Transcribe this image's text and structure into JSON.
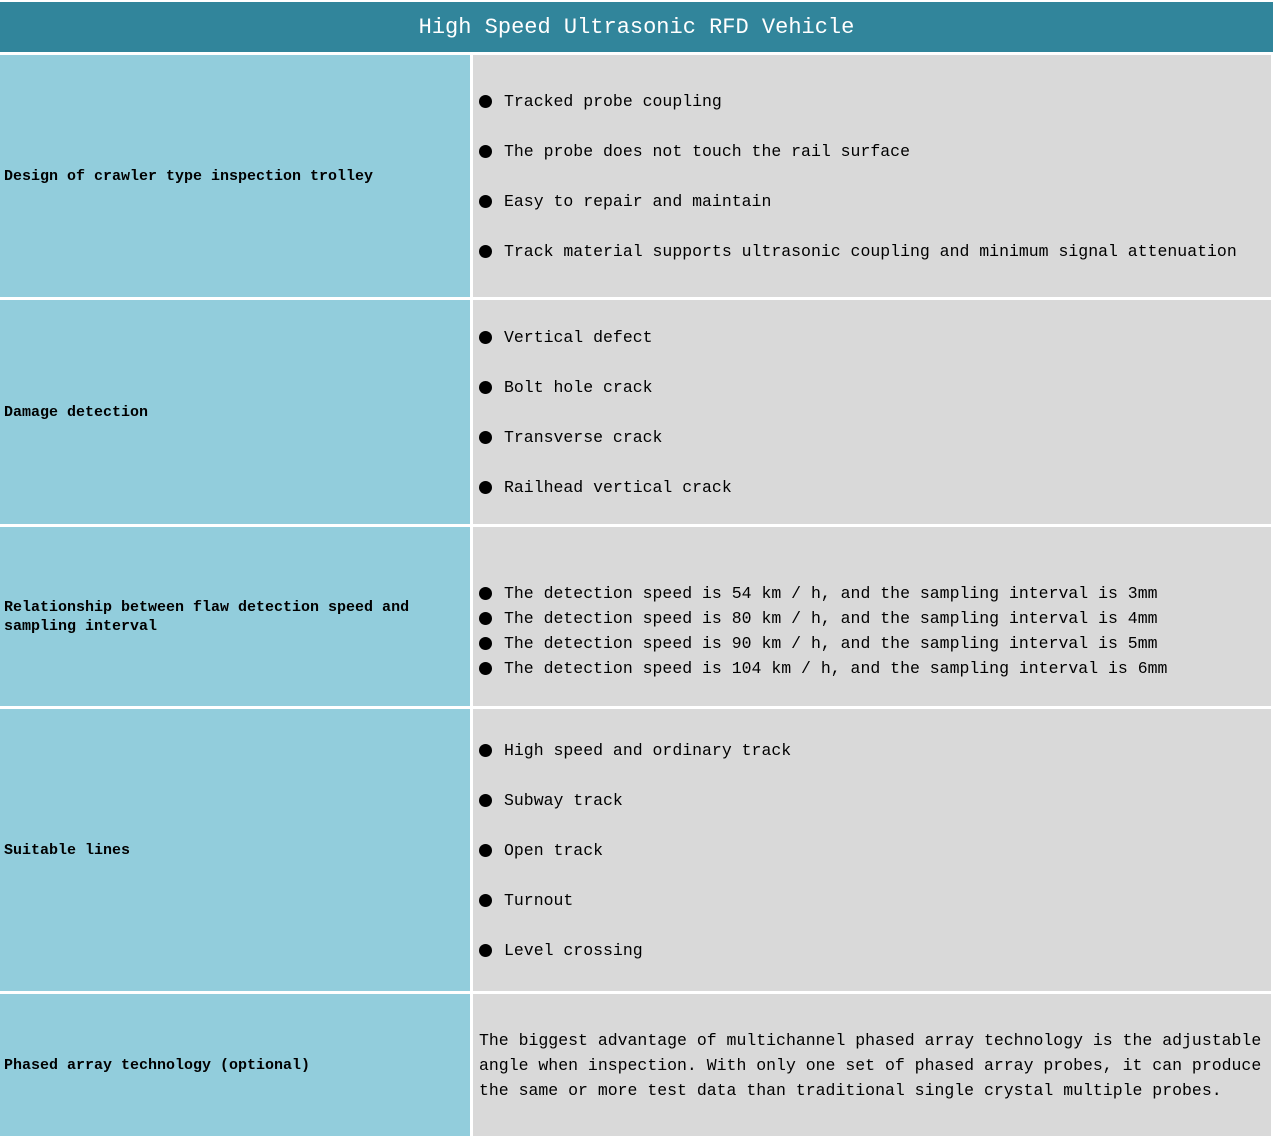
{
  "header": {
    "title": "High Speed Ultrasonic RFD Vehicle"
  },
  "colors": {
    "header_bg": "#31859B",
    "label_cell_bg": "#92CDDC",
    "content_cell_bg": "#D9D9D9",
    "border": "#FFFFFF",
    "title_text": "#FFFFFF",
    "body_text": "#000000"
  },
  "rows": [
    {
      "label": "Design of crawler type inspection trolley",
      "items": [
        "Tracked probe coupling",
        "The probe does not touch the rail surface",
        "Easy to repair and maintain",
        "Track material supports ultrasonic coupling and minimum signal attenuation"
      ]
    },
    {
      "label": "Damage detection",
      "items": [
        "Vertical defect",
        "Bolt hole crack",
        "Transverse crack",
        "Railhead vertical crack"
      ]
    },
    {
      "label": "Relationship between flaw detection speed and sampling interval",
      "items": [
        "The detection speed is 54 km / h, and the sampling interval is 3mm",
        "The detection speed is 80 km / h, and the sampling interval is 4mm",
        "The detection speed is 90 km / h, and the sampling interval is 5mm",
        "The detection speed is 104 km / h, and the sampling interval is 6mm"
      ]
    },
    {
      "label": "Suitable lines",
      "items": [
        "High speed and ordinary track",
        "Subway track",
        "Open track",
        "Turnout",
        "Level crossing"
      ]
    },
    {
      "label": "Phased array technology (optional)",
      "paragraph": "The biggest advantage of multichannel phased array technology is the adjustable angle when inspection. With only one set of phased array probes, it can produce the same or more test data than traditional single crystal multiple probes."
    }
  ]
}
